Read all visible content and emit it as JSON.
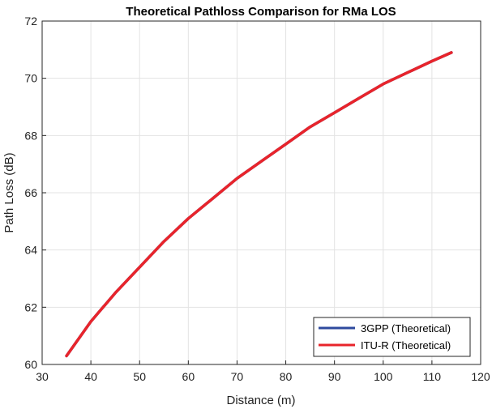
{
  "chart_data": {
    "type": "line",
    "title": "Theoretical Pathloss Comparison for RMa LOS",
    "xlabel": "Distance (m)",
    "ylabel": "Path Loss (dB)",
    "xlim": [
      30,
      120
    ],
    "ylim": [
      60,
      72
    ],
    "xticks": [
      30,
      40,
      50,
      60,
      70,
      80,
      90,
      100,
      110,
      120
    ],
    "yticks": [
      60,
      62,
      64,
      66,
      68,
      70,
      72
    ],
    "grid": true,
    "legend_position": "bottom-right",
    "series": [
      {
        "name": "3GPP (Theoretical)",
        "color": "#2e4a9e",
        "x": [
          35,
          40,
          45,
          50,
          55,
          60,
          65,
          70,
          75,
          80,
          85,
          90,
          95,
          100,
          105,
          110,
          114
        ],
        "y": [
          60.3,
          61.5,
          62.5,
          63.4,
          64.3,
          65.1,
          65.8,
          66.5,
          67.1,
          67.7,
          68.3,
          68.8,
          69.3,
          69.8,
          70.2,
          70.6,
          70.9
        ]
      },
      {
        "name": "ITU-R (Theoretical)",
        "color": "#e8242b",
        "x": [
          35,
          40,
          45,
          50,
          55,
          60,
          65,
          70,
          75,
          80,
          85,
          90,
          95,
          100,
          105,
          110,
          114
        ],
        "y": [
          60.3,
          61.5,
          62.5,
          63.4,
          64.3,
          65.1,
          65.8,
          66.5,
          67.1,
          67.7,
          68.3,
          68.8,
          69.3,
          69.8,
          70.2,
          70.6,
          70.9
        ]
      }
    ]
  }
}
